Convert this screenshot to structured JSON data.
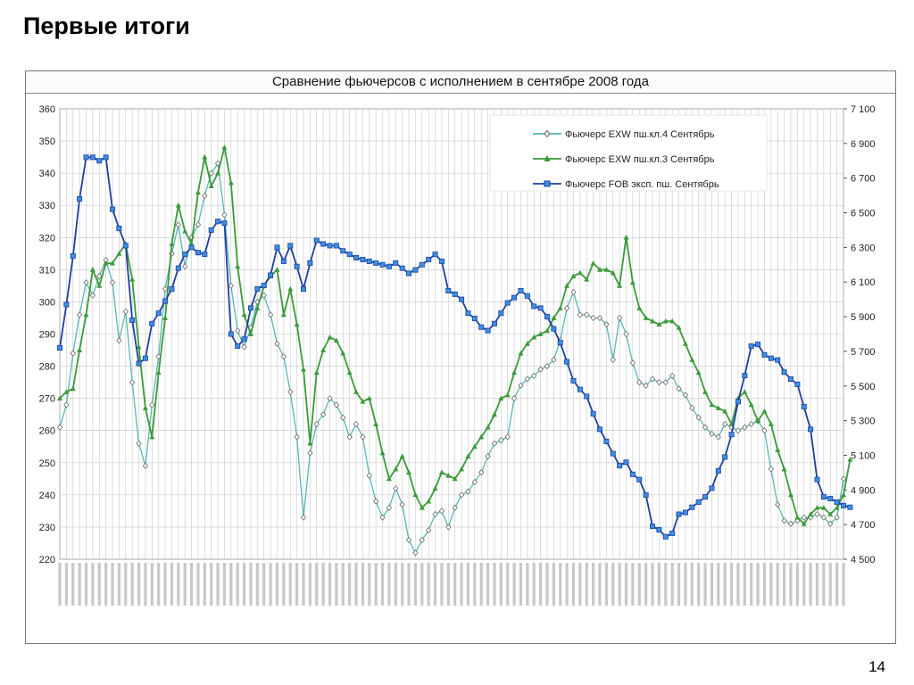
{
  "slide": {
    "title": "Первые итоги",
    "page_number": "14"
  },
  "chart_data": {
    "type": "line",
    "title": "Сравнение фьючерсов с исполнением в сентябре 2008 года",
    "ylim": [
      220,
      360
    ],
    "yticks": [
      220,
      230,
      240,
      250,
      260,
      270,
      280,
      290,
      300,
      310,
      320,
      330,
      340,
      350,
      360
    ],
    "y2lim": [
      4500,
      7100
    ],
    "y2ticks": [
      "4 500",
      "4 700",
      "4 900",
      "5 100",
      "5 300",
      "5 500",
      "5 700",
      "5 900",
      "6 100",
      "6 300",
      "6 500",
      "6 700",
      "6 900",
      "7 100"
    ],
    "legend_position": "top-right",
    "grid": true,
    "series": [
      {
        "name": "Фьючерс EXW пш.кл.4 Сентябрь",
        "color": "#5ab5b5",
        "marker": "diamond-open",
        "axis": "left",
        "values": [
          261,
          268,
          284,
          296,
          306,
          302,
          308,
          313,
          306,
          288,
          297,
          275,
          256,
          249,
          268,
          283,
          304,
          315,
          324,
          311,
          320,
          324,
          333,
          340,
          343,
          327,
          305,
          291,
          286,
          292,
          300,
          302,
          296,
          287,
          283,
          272,
          258,
          233,
          253,
          262,
          265,
          270,
          268,
          264,
          258,
          262,
          258,
          246,
          238,
          233,
          236,
          242,
          237,
          226,
          222,
          226,
          229,
          234,
          235,
          230,
          236,
          240,
          241,
          244,
          247,
          252,
          256,
          257,
          258,
          270,
          274,
          276,
          277,
          279,
          280,
          282,
          288,
          298,
          303,
          296,
          296,
          295,
          295,
          293,
          282,
          295,
          290,
          281,
          275,
          274,
          276,
          275,
          275,
          277,
          273,
          271,
          267,
          264,
          261,
          259,
          258,
          262,
          261,
          260,
          261,
          262,
          263,
          260,
          248,
          237,
          232,
          231,
          232,
          233,
          233,
          234,
          233,
          231,
          233,
          245
        ]
      },
      {
        "name": "Фьючерс EXW пш.кл.3 Сентябрь",
        "color": "#3a9a3a",
        "marker": "triangle",
        "axis": "left",
        "values": [
          270,
          272,
          273,
          285,
          296,
          310,
          305,
          312,
          312,
          315,
          318,
          307,
          286,
          267,
          258,
          278,
          295,
          318,
          330,
          322,
          318,
          334,
          345,
          336,
          340,
          348,
          337,
          311,
          296,
          290,
          298,
          305,
          308,
          310,
          296,
          304,
          293,
          279,
          256,
          278,
          285,
          289,
          288,
          284,
          278,
          272,
          269,
          270,
          262,
          253,
          245,
          248,
          252,
          247,
          240,
          236,
          238,
          242,
          247,
          246,
          245,
          248,
          252,
          255,
          258,
          261,
          265,
          270,
          271,
          278,
          284,
          287,
          289,
          290,
          291,
          295,
          298,
          305,
          308,
          309,
          307,
          312,
          310,
          310,
          309,
          305,
          320,
          306,
          298,
          295,
          294,
          293,
          294,
          294,
          292,
          287,
          282,
          278,
          272,
          268,
          267,
          266,
          262,
          270,
          272,
          268,
          263,
          266,
          262,
          254,
          248,
          240,
          233,
          231,
          234,
          236,
          236,
          234,
          236,
          240,
          251
        ]
      },
      {
        "name": "Фьючерс FOB эксп. пш. Сентябрь",
        "color": "#1f3fa0",
        "marker": "square",
        "axis": "right",
        "values": [
          5720,
          5970,
          6250,
          6580,
          6820,
          6820,
          6800,
          6820,
          6520,
          6410,
          6310,
          5880,
          5630,
          5660,
          5860,
          5920,
          5990,
          6060,
          6180,
          6260,
          6300,
          6270,
          6260,
          6400,
          6450,
          6440,
          5800,
          5730,
          5770,
          5950,
          6060,
          6080,
          6140,
          6300,
          6220,
          6310,
          6190,
          6060,
          6210,
          6340,
          6320,
          6310,
          6310,
          6280,
          6260,
          6240,
          6230,
          6220,
          6210,
          6200,
          6190,
          6210,
          6180,
          6150,
          6170,
          6200,
          6230,
          6260,
          6220,
          6050,
          6030,
          6000,
          5920,
          5890,
          5840,
          5820,
          5860,
          5920,
          5980,
          6010,
          6050,
          6020,
          5960,
          5950,
          5900,
          5830,
          5750,
          5640,
          5530,
          5480,
          5440,
          5340,
          5250,
          5180,
          5110,
          5040,
          5060,
          4990,
          4960,
          4870,
          4690,
          4670,
          4630,
          4650,
          4760,
          4770,
          4800,
          4830,
          4860,
          4910,
          5010,
          5090,
          5220,
          5410,
          5560,
          5730,
          5740,
          5680,
          5660,
          5650,
          5580,
          5540,
          5510,
          5380,
          5250,
          4960,
          4860,
          4850,
          4830,
          4810,
          4800
        ]
      }
    ]
  }
}
